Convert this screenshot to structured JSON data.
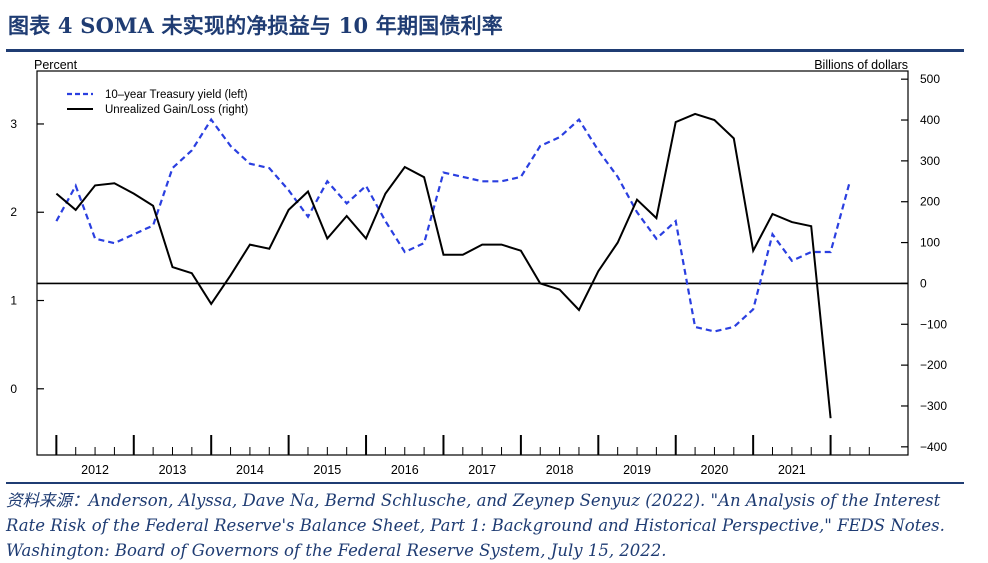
{
  "header": {
    "title": "图表 4  SOMA 未实现的净损益与 10 年期国债利率"
  },
  "source": {
    "text": "资料来源：Anderson, Alyssa, Dave Na, Bernd Schlusche, and Zeynep Senyuz (2022). \"An Analysis of the Interest Rate Risk of the Federal Reserve's Balance Sheet, Part 1: Background and Historical Perspective,\" FEDS Notes. Washington: Board of Governors of the Federal Reserve System, July 15, 2022."
  },
  "colors": {
    "title": "#1f3c73",
    "yield_series": "#2a3fe0",
    "gain_loss_series": "#000000"
  },
  "chart_data": {
    "type": "line",
    "left_axis_label": "Percent",
    "right_axis_label": "Billions of dollars",
    "left_ylim": [
      -0.75,
      3.6
    ],
    "right_ylim": [
      -420,
      520
    ],
    "left_ticks": [
      "0",
      "1",
      "2",
      "3"
    ],
    "left_tick_values": [
      0,
      1,
      2,
      3
    ],
    "right_ticks": [
      "−400",
      "−300",
      "−200",
      "−100",
      "0",
      "100",
      "200",
      "300",
      "400",
      "500"
    ],
    "right_tick_values": [
      -400,
      -300,
      -200,
      -100,
      0,
      100,
      200,
      300,
      400,
      500
    ],
    "x_ticks": [
      "2012",
      "2013",
      "2014",
      "2015",
      "2016",
      "2017",
      "2018",
      "2019",
      "2020",
      "2021"
    ],
    "x_tick_values": [
      2012.0,
      2013.0,
      2014.0,
      2015.0,
      2016.0,
      2017.0,
      2018.0,
      2019.0,
      2020.0,
      2021.0
    ],
    "xlim": [
      2011.25,
      2022.5
    ],
    "zero_line": "right axis 0",
    "legend_position": "top-left",
    "series": [
      {
        "name": "10–year Treasury yield (left)",
        "axis": "left",
        "style": "dashed",
        "points": [
          [
            2011.5,
            1.9
          ],
          [
            2011.75,
            2.3
          ],
          [
            2012.0,
            1.7
          ],
          [
            2012.25,
            1.65
          ],
          [
            2012.5,
            1.75
          ],
          [
            2012.75,
            1.85
          ],
          [
            2013.0,
            2.5
          ],
          [
            2013.25,
            2.7
          ],
          [
            2013.5,
            3.05
          ],
          [
            2013.75,
            2.75
          ],
          [
            2014.0,
            2.55
          ],
          [
            2014.25,
            2.5
          ],
          [
            2014.5,
            2.25
          ],
          [
            2014.75,
            1.95
          ],
          [
            2015.0,
            2.35
          ],
          [
            2015.25,
            2.1
          ],
          [
            2015.5,
            2.3
          ],
          [
            2015.75,
            1.9
          ],
          [
            2016.0,
            1.55
          ],
          [
            2016.25,
            1.65
          ],
          [
            2016.5,
            2.45
          ],
          [
            2016.75,
            2.4
          ],
          [
            2017.0,
            2.35
          ],
          [
            2017.25,
            2.35
          ],
          [
            2017.5,
            2.4
          ],
          [
            2017.75,
            2.75
          ],
          [
            2018.0,
            2.85
          ],
          [
            2018.25,
            3.05
          ],
          [
            2018.5,
            2.7
          ],
          [
            2018.75,
            2.4
          ],
          [
            2019.0,
            2.0
          ],
          [
            2019.25,
            1.7
          ],
          [
            2019.5,
            1.9
          ],
          [
            2019.75,
            0.7
          ],
          [
            2020.0,
            0.65
          ],
          [
            2020.25,
            0.7
          ],
          [
            2020.5,
            0.9
          ],
          [
            2020.75,
            1.75
          ],
          [
            2021.0,
            1.45
          ],
          [
            2021.25,
            1.55
          ],
          [
            2021.5,
            1.55
          ],
          [
            2021.75,
            2.35
          ]
        ]
      },
      {
        "name": "Unrealized Gain/Loss (right)",
        "axis": "right",
        "style": "solid",
        "points": [
          [
            2011.5,
            220
          ],
          [
            2011.75,
            180
          ],
          [
            2012.0,
            240
          ],
          [
            2012.25,
            245
          ],
          [
            2012.5,
            220
          ],
          [
            2012.75,
            190
          ],
          [
            2013.0,
            40
          ],
          [
            2013.25,
            25
          ],
          [
            2013.5,
            -50
          ],
          [
            2013.75,
            20
          ],
          [
            2014.0,
            95
          ],
          [
            2014.25,
            85
          ],
          [
            2014.5,
            180
          ],
          [
            2014.75,
            225
          ],
          [
            2015.0,
            110
          ],
          [
            2015.25,
            165
          ],
          [
            2015.5,
            110
          ],
          [
            2015.75,
            220
          ],
          [
            2016.0,
            285
          ],
          [
            2016.25,
            260
          ],
          [
            2016.5,
            70
          ],
          [
            2016.75,
            70
          ],
          [
            2017.0,
            95
          ],
          [
            2017.25,
            95
          ],
          [
            2017.5,
            80
          ],
          [
            2017.75,
            0
          ],
          [
            2018.0,
            -15
          ],
          [
            2018.25,
            -65
          ],
          [
            2018.5,
            30
          ],
          [
            2018.75,
            100
          ],
          [
            2019.0,
            205
          ],
          [
            2019.25,
            160
          ],
          [
            2019.5,
            395
          ],
          [
            2019.75,
            415
          ],
          [
            2020.0,
            400
          ],
          [
            2020.25,
            355
          ],
          [
            2020.5,
            80
          ],
          [
            2020.75,
            170
          ],
          [
            2021.0,
            150
          ],
          [
            2021.25,
            140
          ],
          [
            2021.5,
            -330
          ]
        ]
      }
    ]
  }
}
